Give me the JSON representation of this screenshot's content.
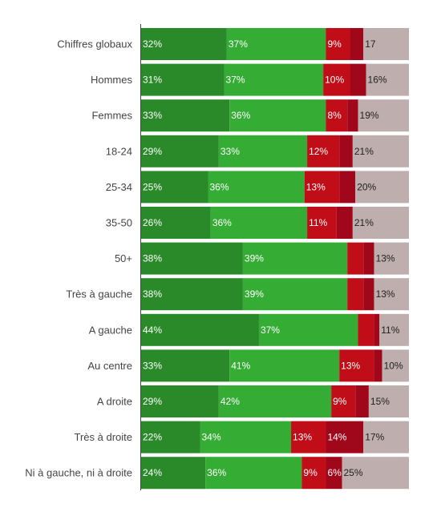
{
  "chart_data": {
    "type": "bar",
    "orientation": "horizontal",
    "stacked": true,
    "normalized_to": 100,
    "categories": [
      "Chiffres globaux",
      "Hommes",
      "Femmes",
      "18-24",
      "25-34",
      "35-50",
      "50+",
      "Très à gauche",
      "A gauche",
      "Au centre",
      "A droite",
      "Très à droite",
      "Ni à gauche, ni à droite"
    ],
    "series": [
      {
        "color": "#2a8a2a",
        "text_color": "#ffffff",
        "values": [
          32,
          31,
          33,
          29,
          25,
          26,
          38,
          38,
          44,
          33,
          29,
          22,
          24
        ]
      },
      {
        "color": "#35ad35",
        "text_color": "#ffffff",
        "values": [
          37,
          37,
          36,
          33,
          36,
          36,
          39,
          39,
          37,
          41,
          42,
          34,
          36
        ]
      },
      {
        "color": "#c00d18",
        "text_color": "#ffffff",
        "values": [
          9,
          10,
          8,
          12,
          13,
          11,
          6,
          6,
          6,
          13,
          9,
          13,
          9
        ]
      },
      {
        "color": "#a0071a",
        "text_color": "#ffffff",
        "values": [
          5,
          6,
          4,
          5,
          6,
          6,
          4,
          4,
          2,
          3,
          5,
          14,
          6
        ]
      },
      {
        "color": "#bfaeae",
        "text_color": "#222222",
        "values": [
          17,
          16,
          19,
          21,
          20,
          21,
          13,
          13,
          11,
          10,
          15,
          17,
          25
        ]
      }
    ],
    "labels": [
      [
        "32%",
        "37%",
        "9%",
        "",
        "17"
      ],
      [
        "31%",
        "37%",
        "10%",
        "",
        "16%"
      ],
      [
        "33%",
        "36%",
        "8%",
        "",
        "19%"
      ],
      [
        "29%",
        "33%",
        "12%",
        "",
        "21%"
      ],
      [
        "25%",
        "36%",
        "13%",
        "",
        "20%"
      ],
      [
        "26%",
        "36%",
        "11%",
        "",
        "21%"
      ],
      [
        "38%",
        "39%",
        "",
        "",
        "13%"
      ],
      [
        "38%",
        "39%",
        "",
        "",
        "13%"
      ],
      [
        "44%",
        "37%",
        "",
        "",
        "11%"
      ],
      [
        "33%",
        "41%",
        "13%",
        "",
        "10%"
      ],
      [
        "29%",
        "42%",
        "9%",
        "",
        "15%"
      ],
      [
        "22%",
        "34%",
        "13%",
        "14%",
        "17%"
      ],
      [
        "24%",
        "36%",
        "9%",
        "6%",
        "25%"
      ]
    ],
    "xlim": [
      0,
      100
    ],
    "grid": false,
    "legend": "none"
  }
}
